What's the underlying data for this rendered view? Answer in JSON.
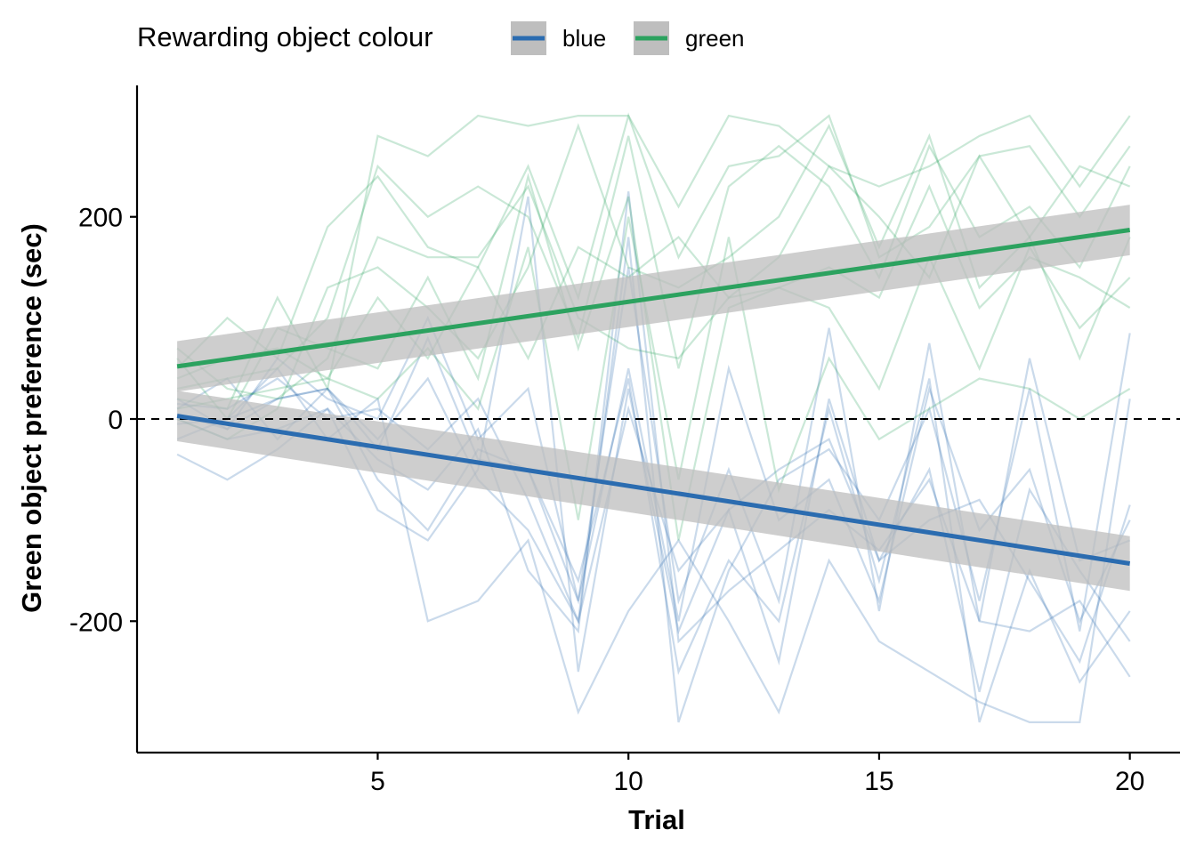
{
  "chart_data": {
    "type": "line",
    "title": "",
    "xlabel": "Trial",
    "ylabel": "Green object preference (sec)",
    "xlim": [
      0.2,
      21
    ],
    "ylim": [
      -330,
      330
    ],
    "x_ticks": [
      5,
      10,
      15,
      20
    ],
    "x_tick_labels": [
      "5",
      "10",
      "15",
      "20"
    ],
    "y_ticks": [
      -200,
      0,
      200
    ],
    "y_tick_labels": [
      "-200",
      "0",
      "200"
    ],
    "reference_line": {
      "y": 0,
      "style": "dashed",
      "color": "#000000"
    },
    "grid": false,
    "legend": {
      "title": "Rewarding object colour",
      "placement": "top",
      "entries": [
        {
          "label": "blue",
          "color": "#2b6cb0"
        },
        {
          "label": "green",
          "color": "#2ca25f"
        }
      ]
    },
    "band_color": "#bebebe",
    "series": [
      {
        "name": "blue",
        "color": "#2b6cb0",
        "fit": {
          "x": [
            1,
            20
          ],
          "y": [
            3,
            -143
          ]
        },
        "ci_band": {
          "x": [
            1,
            20
          ],
          "lower": [
            -22,
            -170
          ],
          "upper": [
            28,
            -116
          ]
        },
        "subjects": [
          [
            5,
            -10,
            20,
            30,
            -20,
            40,
            -60,
            -110,
            -200,
            180,
            -300,
            -150,
            -60,
            -30,
            -100,
            10,
            -180,
            30,
            -210,
            85
          ],
          [
            -35,
            -60,
            -30,
            10,
            -90,
            -120,
            -50,
            220,
            -250,
            30,
            -210,
            -90,
            -240,
            20,
            -140,
            -50,
            -270,
            -70,
            -150,
            -220
          ],
          [
            10,
            40,
            -20,
            30,
            -60,
            -110,
            -30,
            -50,
            -180,
            150,
            -180,
            -50,
            -180,
            90,
            -190,
            75,
            -200,
            60,
            -140,
            -120
          ],
          [
            -20,
            0,
            50,
            -20,
            20,
            -200,
            -180,
            -120,
            -290,
            -190,
            -120,
            -200,
            -290,
            -140,
            -220,
            -250,
            -280,
            -300,
            -300,
            20
          ],
          [
            20,
            -10,
            60,
            20,
            0,
            100,
            -20,
            30,
            -180,
            50,
            -200,
            50,
            -100,
            -60,
            -180,
            30,
            -110,
            -50,
            -200,
            -100
          ],
          [
            0,
            -20,
            -10,
            10,
            -40,
            -70,
            -10,
            -150,
            -210,
            225,
            -220,
            -170,
            -130,
            -90,
            -130,
            -60,
            -200,
            -210,
            -180,
            -255
          ],
          [
            -5,
            0,
            20,
            30,
            -30,
            80,
            -40,
            -50,
            -160,
            40,
            -250,
            -140,
            -200,
            10,
            -160,
            40,
            -300,
            -150,
            -260,
            -190
          ],
          [
            15,
            10,
            40,
            0,
            10,
            -30,
            20,
            -80,
            -200,
            10,
            -150,
            -90,
            -50,
            -20,
            -140,
            -100,
            -80,
            -160,
            -240,
            -85
          ]
        ]
      },
      {
        "name": "green",
        "color": "#2ca25f",
        "fit": {
          "x": [
            1,
            20
          ],
          "y": [
            52,
            187
          ]
        },
        "ci_band": {
          "x": [
            1,
            20
          ],
          "lower": [
            27,
            162
          ],
          "upper": [
            77,
            212
          ]
        },
        "subjects": [
          [
            20,
            10,
            120,
            30,
            280,
            260,
            300,
            290,
            300,
            300,
            210,
            300,
            290,
            250,
            230,
            250,
            280,
            300,
            230,
            300
          ],
          [
            50,
            100,
            60,
            190,
            240,
            170,
            150,
            250,
            120,
            300,
            160,
            250,
            260,
            300,
            160,
            190,
            260,
            270,
            200,
            270
          ],
          [
            30,
            40,
            50,
            100,
            250,
            200,
            230,
            200,
            80,
            280,
            50,
            230,
            270,
            230,
            140,
            270,
            180,
            210,
            150,
            250
          ],
          [
            0,
            -20,
            10,
            130,
            150,
            110,
            60,
            150,
            290,
            150,
            130,
            160,
            200,
            290,
            170,
            280,
            130,
            180,
            250,
            230
          ],
          [
            60,
            0,
            90,
            70,
            50,
            140,
            40,
            240,
            70,
            220,
            -120,
            110,
            130,
            110,
            30,
            160,
            50,
            170,
            90,
            140
          ],
          [
            10,
            20,
            30,
            40,
            20,
            70,
            10,
            170,
            -100,
            200,
            -60,
            180,
            -70,
            60,
            -20,
            10,
            40,
            30,
            0,
            30
          ],
          [
            40,
            60,
            70,
            40,
            120,
            60,
            150,
            60,
            170,
            140,
            180,
            120,
            160,
            250,
            200,
            140,
            260,
            180,
            60,
            180
          ],
          [
            70,
            30,
            20,
            60,
            180,
            160,
            160,
            230,
            100,
            70,
            60,
            120,
            130,
            150,
            120,
            230,
            110,
            160,
            140,
            110
          ]
        ]
      }
    ]
  }
}
